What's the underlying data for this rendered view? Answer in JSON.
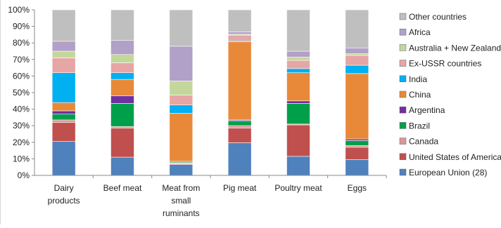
{
  "chart_data": {
    "type": "bar",
    "stacked": true,
    "title": "",
    "xlabel": "",
    "ylabel": "",
    "ylim": [
      0,
      100
    ],
    "y_ticks": [
      "0%",
      "10%",
      "20%",
      "30%",
      "40%",
      "50%",
      "60%",
      "70%",
      "80%",
      "90%",
      "100%"
    ],
    "grid": false,
    "legend_position": "right",
    "categories": [
      [
        "Dairy",
        "products"
      ],
      [
        "Beef meat"
      ],
      [
        "Meat from",
        "small",
        "ruminants"
      ],
      [
        "Pig meat"
      ],
      [
        "Poultry meat"
      ],
      [
        "Eggs"
      ]
    ],
    "series": [
      {
        "name": "European Union (28)",
        "color": "#4f81bd",
        "values": [
          20.5,
          11,
          6.5,
          20,
          11.5,
          9.5
        ]
      },
      {
        "name": "United States of America",
        "color": "#c0504d",
        "values": [
          11.5,
          17.5,
          0.5,
          9,
          19,
          7.5
        ]
      },
      {
        "name": "Canada",
        "color": "#d99694",
        "values": [
          1.5,
          1,
          0.5,
          1.5,
          0.5,
          1
        ]
      },
      {
        "name": "Brazil",
        "color": "#00a04a",
        "values": [
          3.5,
          14,
          0.5,
          3,
          12.5,
          3
        ]
      },
      {
        "name": "Argentina",
        "color": "#7030a0",
        "values": [
          2,
          4.5,
          0.5,
          0.5,
          1.5,
          1
        ]
      },
      {
        "name": "China",
        "color": "#e8893a",
        "values": [
          5,
          10,
          29,
          48,
          17,
          39.5
        ]
      },
      {
        "name": "India",
        "color": "#00b0f0",
        "values": [
          18,
          4,
          5,
          0.5,
          2.5,
          5
        ]
      },
      {
        "name": "Ex-USSR countries",
        "color": "#e6a6a6",
        "values": [
          9,
          6,
          6,
          3.5,
          5,
          6
        ]
      },
      {
        "name": "Australia + New Zealand",
        "color": "#c4d79b",
        "values": [
          4,
          5,
          8.5,
          0.5,
          2,
          1
        ]
      },
      {
        "name": "Africa",
        "color": "#b1a0c7",
        "values": [
          6,
          8.5,
          21,
          1.5,
          3.5,
          3.5
        ]
      },
      {
        "name": "Other countries",
        "color": "#bfbfbf",
        "values": [
          19,
          18.5,
          22,
          13.5,
          25,
          23
        ]
      }
    ]
  }
}
